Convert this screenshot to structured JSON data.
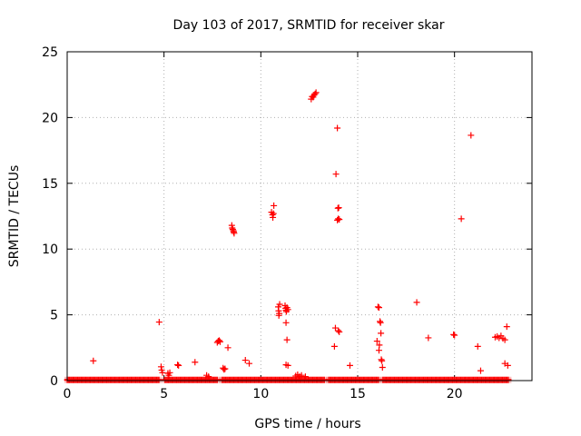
{
  "chart_data": {
    "type": "scatter",
    "title": "Day 103 of 2017, SRMTID for receiver skar",
    "xlabel": "GPS time / hours",
    "ylabel": "SRMTID / TECUs",
    "xlim": [
      0,
      24
    ],
    "ylim": [
      0,
      25
    ],
    "x_ticks": [
      "0",
      "5",
      "10",
      "15",
      "20"
    ],
    "y_ticks": [
      "0",
      "5",
      "10",
      "15",
      "20",
      "25"
    ],
    "grid": true,
    "legend": "none",
    "marker": "+",
    "color": "#ff0000",
    "baseline": {
      "y": 0.05,
      "segments": [
        [
          0,
          4.75
        ],
        [
          5.05,
          7.8
        ],
        [
          8.0,
          13.3
        ],
        [
          13.5,
          16.1
        ],
        [
          16.3,
          22.8
        ]
      ]
    },
    "points": [
      [
        1.35,
        1.5
      ],
      [
        4.75,
        4.45
      ],
      [
        4.85,
        1.05
      ],
      [
        4.88,
        0.8
      ],
      [
        4.92,
        0.6
      ],
      [
        5.2,
        0.55
      ],
      [
        5.25,
        0.4
      ],
      [
        5.3,
        0.6
      ],
      [
        5.7,
        1.2
      ],
      [
        5.75,
        1.15
      ],
      [
        6.6,
        1.4
      ],
      [
        7.2,
        0.4
      ],
      [
        7.3,
        0.3
      ],
      [
        7.75,
        2.9
      ],
      [
        7.8,
        3.0
      ],
      [
        7.85,
        3.05
      ],
      [
        7.9,
        2.95
      ],
      [
        8.05,
        0.95
      ],
      [
        8.1,
        0.85
      ],
      [
        8.15,
        0.9
      ],
      [
        8.3,
        2.5
      ],
      [
        8.5,
        11.8
      ],
      [
        8.52,
        11.6
      ],
      [
        8.55,
        11.5
      ],
      [
        8.58,
        11.4
      ],
      [
        8.6,
        11.3
      ],
      [
        8.62,
        11.2
      ],
      [
        9.2,
        1.55
      ],
      [
        9.4,
        1.3
      ],
      [
        10.55,
        12.8
      ],
      [
        10.6,
        12.6
      ],
      [
        10.62,
        12.4
      ],
      [
        10.65,
        12.7
      ],
      [
        10.67,
        13.3
      ],
      [
        10.9,
        5.6
      ],
      [
        10.92,
        5.3
      ],
      [
        10.95,
        5.1
      ],
      [
        10.97,
        5.8
      ],
      [
        10.93,
        4.95
      ],
      [
        11.25,
        5.7
      ],
      [
        11.28,
        5.5
      ],
      [
        11.3,
        5.35
      ],
      [
        11.32,
        5.25
      ],
      [
        11.35,
        5.55
      ],
      [
        11.4,
        5.4
      ],
      [
        11.3,
        4.4
      ],
      [
        11.35,
        3.1
      ],
      [
        11.3,
        1.2
      ],
      [
        11.4,
        1.15
      ],
      [
        11.8,
        0.35
      ],
      [
        11.9,
        0.45
      ],
      [
        12.0,
        0.3
      ],
      [
        12.1,
        0.4
      ],
      [
        12.3,
        0.3
      ],
      [
        12.6,
        21.4
      ],
      [
        12.65,
        21.6
      ],
      [
        12.7,
        21.55
      ],
      [
        12.75,
        21.7
      ],
      [
        12.8,
        21.8
      ],
      [
        12.85,
        21.9
      ],
      [
        13.8,
        2.6
      ],
      [
        13.85,
        4.0
      ],
      [
        13.88,
        15.7
      ],
      [
        13.95,
        19.2
      ],
      [
        13.95,
        12.2
      ],
      [
        14.0,
        12.3
      ],
      [
        14.05,
        12.25
      ],
      [
        13.98,
        13.1
      ],
      [
        14.02,
        13.15
      ],
      [
        14.0,
        3.8
      ],
      [
        14.05,
        3.7
      ],
      [
        14.6,
        1.15
      ],
      [
        16.0,
        3.0
      ],
      [
        16.05,
        5.6
      ],
      [
        16.1,
        5.55
      ],
      [
        16.15,
        4.5
      ],
      [
        16.18,
        4.4
      ],
      [
        16.1,
        2.3
      ],
      [
        16.12,
        2.7
      ],
      [
        16.2,
        3.6
      ],
      [
        16.22,
        1.6
      ],
      [
        16.25,
        1.5
      ],
      [
        16.28,
        1.0
      ],
      [
        18.05,
        5.95
      ],
      [
        18.65,
        3.25
      ],
      [
        19.95,
        3.5
      ],
      [
        20.0,
        3.45
      ],
      [
        20.35,
        12.3
      ],
      [
        20.85,
        18.65
      ],
      [
        21.2,
        2.6
      ],
      [
        21.35,
        0.75
      ],
      [
        22.1,
        3.3
      ],
      [
        22.2,
        3.35
      ],
      [
        22.3,
        3.25
      ],
      [
        22.4,
        3.4
      ],
      [
        22.5,
        3.2
      ],
      [
        22.6,
        3.1
      ],
      [
        22.7,
        4.1
      ],
      [
        22.6,
        1.3
      ],
      [
        22.75,
        1.15
      ]
    ]
  }
}
